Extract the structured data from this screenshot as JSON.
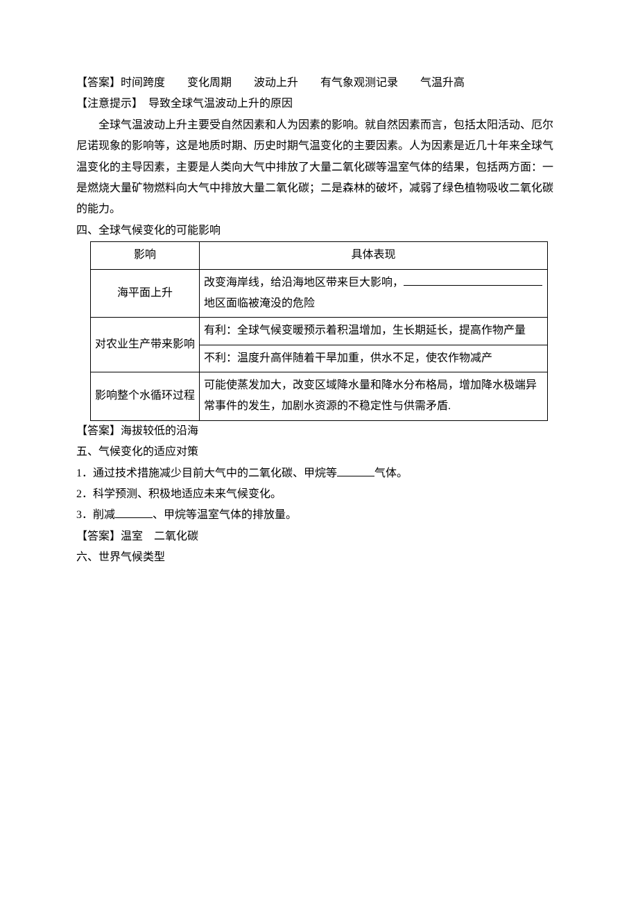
{
  "para_answer_prefix": "【答案】",
  "para_answer_1": "时间跨度　　变化周期　　波动上升　　有气象观测记录　　气温升高",
  "para_note_prefix": "【注意提示】　",
  "para_note_title": "导致全球气温波动上升的原因",
  "para_note_body": "全球气温波动上升主要受自然因素和人为因素的影响。就自然因素而言，包括太阳活动、厄尔尼诺现象的影响等，这是地质时期、历史时期气温变化的主要因素。人为因素是近几十年来全球气温变化的主导因素，主要是人类向大气中排放了大量二氧化碳等温室气体的结果，包括两方面：一是燃烧大量矿物燃料向大气中排放大量二氧化碳；二是森林的破坏，减弱了绿色植物吸收二氧化碳的能力。",
  "section4_title": "四、全球气候变化的可能影响",
  "table": {
    "header_col1": "影响",
    "header_col2": "具体表现",
    "row1": {
      "col1": "海平面上升",
      "col2_part1": "改变海岸线，给沿海地区带来巨大影响，",
      "col2_part2": "地区面临被淹没的危险"
    },
    "row2": {
      "col1": "对农业生产带来影响",
      "col2a": "有利：全球气候变暖预示着积温增加，生长期延长，提高作物产量",
      "col2b": "不利：温度升高伴随着干旱加重，供水不足，使农作物减产"
    },
    "row3": {
      "col1": "影响整个水循环过程",
      "col2": "可能使蒸发加大，改变区域降水量和降水分布格局，增加降水极端异常事件的发生，加剧水资源的不稳定性与供需矛盾."
    }
  },
  "table_answer_prefix": "【答案】",
  "table_answer": "海拔较低的沿海",
  "section5_title": "五、气候变化的适应对策",
  "section5_item1_a": "1．通过技术措施减少目前大气中的二氧化碳、甲烷等",
  "section5_item1_b": "气体。",
  "section5_item2": "2．科学预测、积极地适应未来气候变化。",
  "section5_item3_a": "3．削减",
  "section5_item3_b": "、甲烷等温室气体的排放量。",
  "section5_answer_prefix": "【答案】",
  "section5_answer": "温室　二氧化碳",
  "section6_title": "六、世界气候类型"
}
